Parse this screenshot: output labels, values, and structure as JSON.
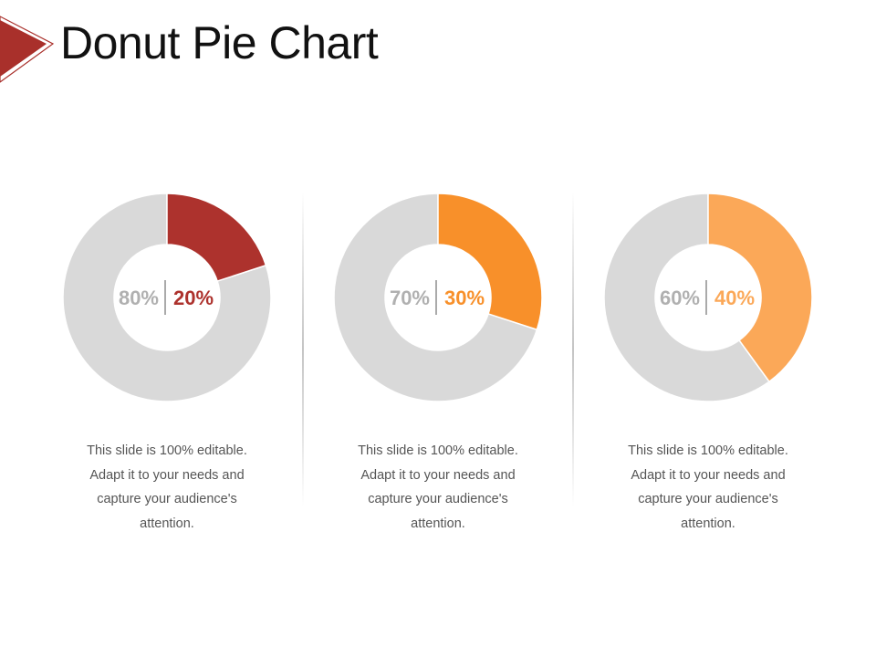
{
  "title": "Donut Pie Chart",
  "colors": {
    "title_arrow": "#a9302b",
    "remainder": "#d9d9d9",
    "remainder_label": "#b0b0b0",
    "center_separator": "#555555"
  },
  "chart_data": [
    {
      "type": "pie",
      "donut": true,
      "slices": [
        {
          "label": "80%",
          "value": 80,
          "color": "#d9d9d9"
        },
        {
          "label": "20%",
          "value": 20,
          "color": "#ad322d"
        }
      ],
      "description": [
        "This slide is 100% editable.",
        "Adapt it to your needs and",
        "capture your audience's",
        "attention."
      ]
    },
    {
      "type": "pie",
      "donut": true,
      "slices": [
        {
          "label": "70%",
          "value": 70,
          "color": "#d9d9d9"
        },
        {
          "label": "30%",
          "value": 30,
          "color": "#f8902a"
        }
      ],
      "description": [
        "This slide is 100% editable.",
        "Adapt it to your needs and",
        "capture your audience's",
        "attention."
      ]
    },
    {
      "type": "pie",
      "donut": true,
      "slices": [
        {
          "label": "60%",
          "value": 60,
          "color": "#d9d9d9"
        },
        {
          "label": "40%",
          "value": 40,
          "color": "#fba858"
        }
      ],
      "description": [
        "This slide is 100% editable.",
        "Adapt it to your needs and",
        "capture your audience's",
        "attention."
      ]
    }
  ]
}
